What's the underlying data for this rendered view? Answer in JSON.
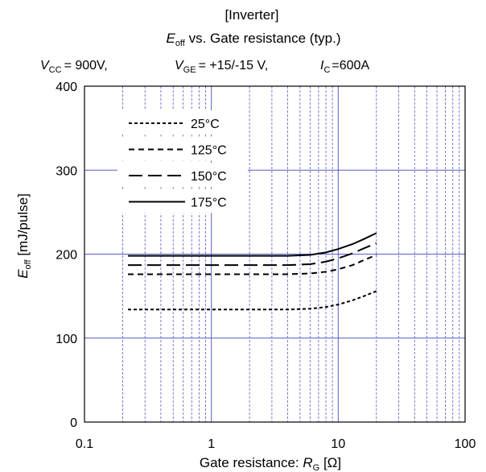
{
  "chart_data": {
    "type": "line",
    "title_line1": "[Inverter]",
    "title_line2": {
      "e": "E",
      "sub": "off",
      "rest": " vs. Gate resistance  (typ.)"
    },
    "conditions": [
      {
        "sym": "V",
        "sub": "CC",
        "val": "= 900V,"
      },
      {
        "sym": "V",
        "sub": "GE",
        "val": "= +15/-15 V,"
      },
      {
        "sym": "I",
        "sub": "C",
        "val": "=600A"
      }
    ],
    "xlabel": {
      "text": "Gate resistance: ",
      "sym": "R",
      "sub": "G",
      "unit": " [Ω]"
    },
    "ylabel": {
      "sym": "E",
      "sub": "off",
      "unit": " [mJ/pulse]"
    },
    "x_scale": "log",
    "xlim": [
      0.1,
      100
    ],
    "ylim": [
      0,
      400
    ],
    "x_ticks": [
      0.1,
      1,
      10,
      100
    ],
    "x_tick_labels": [
      "0.1",
      "1",
      "10",
      "100"
    ],
    "y_ticks": [
      0,
      100,
      200,
      300,
      400
    ],
    "y_tick_labels": [
      "0",
      "100",
      "200",
      "300",
      "400"
    ],
    "grid": true,
    "grid_color": "#5a5ac8",
    "legend_position": "top-left",
    "series": [
      {
        "name": "25°C",
        "dash": "short-dash",
        "x": [
          0.22,
          0.5,
          1,
          2,
          4,
          6,
          8,
          10,
          13,
          16,
          20
        ],
        "y": [
          134,
          134,
          134,
          134,
          134,
          135,
          137,
          140,
          145,
          150,
          156
        ]
      },
      {
        "name": "125°C",
        "dash": "dash",
        "x": [
          0.22,
          0.5,
          1,
          2,
          4,
          6,
          8,
          10,
          13,
          16,
          20
        ],
        "y": [
          176,
          176,
          176,
          176,
          176,
          177,
          179,
          182,
          187,
          193,
          199
        ]
      },
      {
        "name": "150°C",
        "dash": "long-dash",
        "x": [
          0.22,
          0.5,
          1,
          2,
          4,
          6,
          8,
          10,
          13,
          16,
          20
        ],
        "y": [
          187,
          187,
          187,
          187,
          187,
          188,
          191,
          195,
          201,
          207,
          213
        ]
      },
      {
        "name": "175°C",
        "dash": "solid",
        "x": [
          0.22,
          0.5,
          1,
          2,
          4,
          6,
          8,
          10,
          13,
          16,
          20
        ],
        "y": [
          198,
          198,
          198,
          198,
          198,
          199,
          202,
          206,
          212,
          218,
          225
        ]
      }
    ]
  }
}
